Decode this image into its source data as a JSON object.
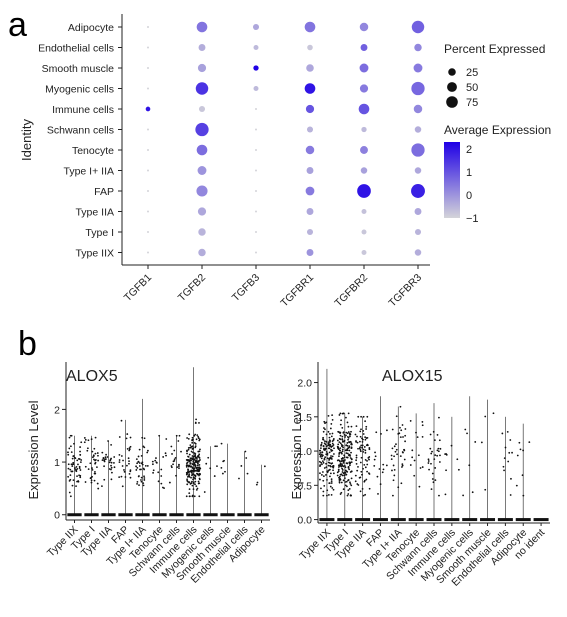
{
  "panel_a": {
    "label": "a",
    "y_title": "Identity",
    "size_legend_title": "Percent Expressed",
    "size_legend_labels": [
      "25",
      "50",
      "75"
    ],
    "color_legend_title": "Average Expression",
    "color_legend_labels": [
      "2",
      "1",
      "0",
      "−1"
    ]
  },
  "panel_b": {
    "label": "b",
    "y_title_left": "Expression Level",
    "y_title_right": "Expression Level",
    "left_gene": "ALOX5",
    "right_gene": "ALOX15"
  },
  "chart_data": [
    {
      "type": "scatter",
      "subtype": "dotplot",
      "genes": [
        "TGFB1",
        "TGFB2",
        "TGFB3",
        "TGFBR1",
        "TGFBR2",
        "TGFBR3"
      ],
      "identities": [
        "Adipocyte",
        "Endothelial cells",
        "Smooth muscle",
        "Myogenic cells",
        "Immune cells",
        "Schwann cells",
        "Tenocyte",
        "Type I+ IIA",
        "FAP",
        "Type IIA",
        "Type I",
        "Type IIX"
      ],
      "percent_expressed": [
        [
          1,
          40,
          8,
          40,
          22,
          60
        ],
        [
          1,
          12,
          4,
          6,
          12,
          15
        ],
        [
          1,
          20,
          5,
          16,
          25,
          25
        ],
        [
          1,
          60,
          4,
          40,
          20,
          70
        ],
        [
          3,
          8,
          1,
          20,
          40,
          22
        ],
        [
          1,
          70,
          1,
          8,
          5,
          10
        ],
        [
          1,
          40,
          1,
          22,
          18,
          70
        ],
        [
          1,
          25,
          1,
          12,
          10,
          10
        ],
        [
          1,
          45,
          1,
          24,
          75,
          78
        ],
        [
          1,
          20,
          1,
          12,
          4,
          12
        ],
        [
          1,
          15,
          1,
          8,
          4,
          8
        ],
        [
          1,
          15,
          1,
          12,
          4,
          10
        ]
      ],
      "average_expression": [
        [
          -1,
          0.5,
          -0.3,
          0.5,
          0.2,
          0.8
        ],
        [
          -1,
          -0.4,
          -0.6,
          -0.8,
          0.8,
          0.2
        ],
        [
          -1,
          -0.2,
          2.3,
          -0.3,
          0.6,
          0.4
        ],
        [
          -1,
          1.5,
          -0.6,
          2.0,
          0.4,
          0.7
        ],
        [
          2.0,
          -0.8,
          -1,
          1.0,
          1.0,
          0.2
        ],
        [
          -1,
          1.3,
          -1,
          -0.5,
          -0.6,
          -0.4
        ],
        [
          -1,
          0.6,
          -1,
          0.4,
          0.3,
          0.6
        ],
        [
          -1,
          0.0,
          -1,
          -0.2,
          -0.2,
          -0.3
        ],
        [
          -1,
          0.2,
          -1,
          0.4,
          2.0,
          1.8
        ],
        [
          -1,
          -0.3,
          -1,
          -0.3,
          -0.7,
          -0.3
        ],
        [
          -1,
          -0.5,
          -1,
          -0.5,
          -0.8,
          -0.5
        ],
        [
          -1,
          -0.4,
          -1,
          0.0,
          -0.8,
          -0.4
        ]
      ],
      "size_legend": [
        25,
        50,
        75
      ],
      "color_range": [
        -1,
        2.3
      ],
      "color_low": "#d4d4d9",
      "color_high": "#1f00e6",
      "ylabel": "Identity"
    },
    {
      "type": "scatter",
      "subtype": "violin",
      "title": "ALOX5",
      "ylabel": "Expression Level",
      "ylim": [
        -0.1,
        2.9
      ],
      "yticks": [
        0,
        1,
        2
      ],
      "categories": [
        "Type IIX",
        "Type I",
        "Type IIA",
        "FAP",
        "Type I+ IIA",
        "Tenocyte",
        "Schwann cells",
        "Immune cells",
        "Myogenic cells",
        "Smooth muscle",
        "Endothelial cells",
        "Adipocyte"
      ],
      "max_values": [
        1.5,
        1.5,
        1.4,
        1.8,
        2.2,
        1.5,
        1.5,
        2.8,
        1.3,
        1.35,
        1.2,
        0.95
      ],
      "nonzero_points": [
        60,
        40,
        30,
        30,
        40,
        20,
        20,
        220,
        8,
        6,
        5,
        3
      ]
    },
    {
      "type": "scatter",
      "subtype": "violin",
      "title": "ALOX15",
      "ylabel": "Expression Level",
      "ylim": [
        -0.05,
        2.3
      ],
      "yticks": [
        0,
        0.5,
        1.0,
        1.5,
        2.0
      ],
      "categories": [
        "Type IIX",
        "Type I",
        "Type IIA",
        "FAP",
        "Type I+ IIA",
        "Tenocyte",
        "Schwann cells",
        "Immune cells",
        "Myogenic cells",
        "Smooth muscle",
        "Endothelial cells",
        "Adipocyte",
        "no ident"
      ],
      "max_values": [
        2.2,
        1.55,
        1.5,
        1.8,
        1.65,
        1.55,
        1.7,
        1.5,
        1.8,
        1.75,
        1.5,
        1.4,
        0
      ],
      "nonzero_points": [
        150,
        200,
        80,
        15,
        40,
        15,
        30,
        8,
        6,
        4,
        12,
        8,
        0
      ]
    }
  ]
}
